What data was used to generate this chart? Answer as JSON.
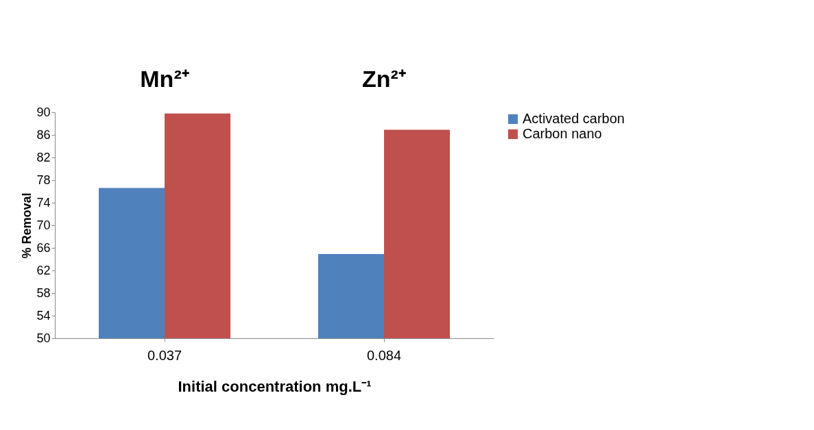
{
  "chart_data": {
    "type": "bar",
    "xlabel": "Initial concentration mg.L⁻¹",
    "ylabel": "% Removal",
    "categories": [
      "0.037",
      "0.084"
    ],
    "series": [
      {
        "name": "Activated carbon",
        "color": "#4f81bd",
        "values": [
          76.6,
          64.9
        ]
      },
      {
        "name": "Carbon nano",
        "color": "#c0504d",
        "values": [
          89.8,
          86.9
        ]
      }
    ],
    "ylim": [
      50,
      90
    ],
    "yticks": [
      50,
      54,
      58,
      62,
      66,
      70,
      74,
      78,
      82,
      86,
      90
    ],
    "grid": false,
    "legend": "right",
    "annotations": [
      "Mn²⁺",
      "Zn²⁺"
    ]
  }
}
